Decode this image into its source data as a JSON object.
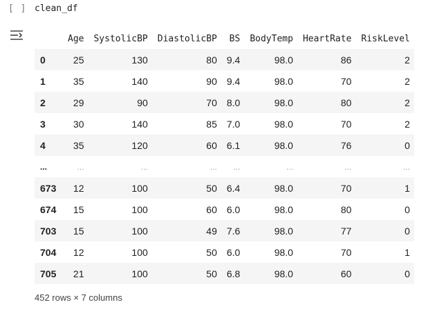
{
  "cell": {
    "run_marker": "[ ]",
    "code": "clean_df"
  },
  "output": {
    "icon": "output-collapse-icon",
    "columns": [
      "Age",
      "SystolicBP",
      "DiastolicBP",
      "BS",
      "BodyTemp",
      "HeartRate",
      "RiskLevel"
    ],
    "rows": [
      {
        "index": "0",
        "values": [
          "25",
          "130",
          "80",
          "9.4",
          "98.0",
          "86",
          "2"
        ]
      },
      {
        "index": "1",
        "values": [
          "35",
          "140",
          "90",
          "9.4",
          "98.0",
          "70",
          "2"
        ]
      },
      {
        "index": "2",
        "values": [
          "29",
          "90",
          "70",
          "8.0",
          "98.0",
          "80",
          "2"
        ]
      },
      {
        "index": "3",
        "values": [
          "30",
          "140",
          "85",
          "7.0",
          "98.0",
          "70",
          "2"
        ]
      },
      {
        "index": "4",
        "values": [
          "35",
          "120",
          "60",
          "6.1",
          "98.0",
          "76",
          "0"
        ]
      },
      {
        "index": "...",
        "values": [
          "...",
          "...",
          "...",
          "...",
          "...",
          "...",
          "..."
        ]
      },
      {
        "index": "673",
        "values": [
          "12",
          "100",
          "50",
          "6.4",
          "98.0",
          "70",
          "1"
        ]
      },
      {
        "index": "674",
        "values": [
          "15",
          "100",
          "60",
          "6.0",
          "98.0",
          "80",
          "0"
        ]
      },
      {
        "index": "703",
        "values": [
          "15",
          "100",
          "49",
          "7.6",
          "98.0",
          "77",
          "0"
        ]
      },
      {
        "index": "704",
        "values": [
          "12",
          "100",
          "50",
          "6.0",
          "98.0",
          "70",
          "1"
        ]
      },
      {
        "index": "705",
        "values": [
          "21",
          "100",
          "50",
          "6.8",
          "98.0",
          "60",
          "0"
        ]
      }
    ],
    "shape_text": "452 rows × 7 columns"
  }
}
